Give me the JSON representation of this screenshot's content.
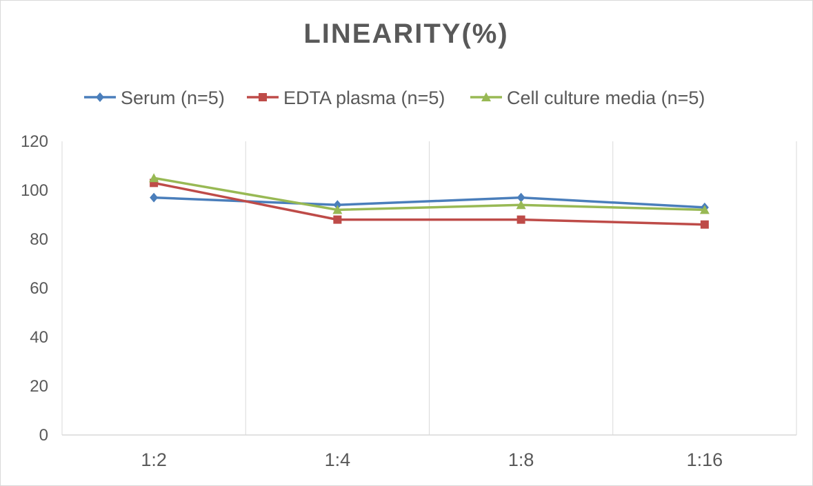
{
  "chart_data": {
    "type": "line",
    "title": "LINEARITY(%)",
    "xlabel": "",
    "ylabel": "",
    "categories": [
      "1:2",
      "1:4",
      "1:8",
      "1:16"
    ],
    "ylim": [
      0,
      120
    ],
    "yticks": [
      0,
      20,
      40,
      60,
      80,
      100,
      120
    ],
    "grid": "vertical",
    "legend_position": "top",
    "series": [
      {
        "name": "Serum (n=5)",
        "color": "#4a7ebb",
        "marker": "diamond",
        "values": [
          97,
          94,
          97,
          93
        ]
      },
      {
        "name": "EDTA plasma (n=5)",
        "color": "#be4b48",
        "marker": "square",
        "values": [
          103,
          88,
          88,
          86
        ]
      },
      {
        "name": "Cell culture media (n=5)",
        "color": "#98b954",
        "marker": "triangle",
        "values": [
          105,
          92,
          94,
          92
        ]
      }
    ]
  }
}
